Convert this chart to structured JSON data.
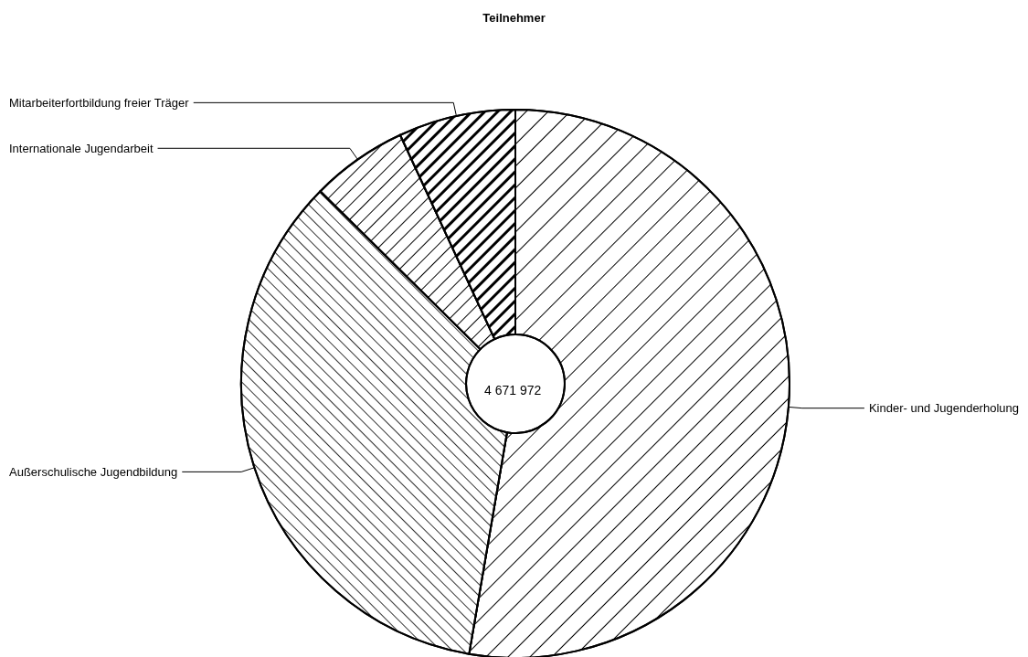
{
  "chart_data": {
    "type": "donut",
    "title": "Teilnehmer",
    "categories": [
      "Kinder- und Jugenderholung",
      "Außerschulische Jugendbildung",
      "Internationale Jugendarbeit",
      "Mitarbeiterfortbildung freier Träger"
    ],
    "values": [
      52.7,
      34.7,
      5.7,
      6.9
    ],
    "colors": [
      "#ffffff",
      "#ffffff",
      "#ffffff",
      "#ffffff"
    ],
    "annotations": [
      "4 671 972"
    ]
  }
}
